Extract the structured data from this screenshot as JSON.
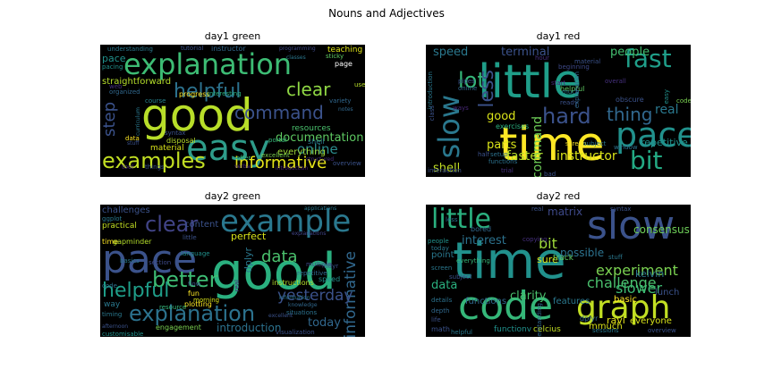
{
  "figure": {
    "title": "Nouns and Adjectives"
  },
  "panels": [
    {
      "title": "day1 green",
      "words": [
        {
          "t": "good",
          "c": "#b8de29"
        },
        {
          "t": "explanation",
          "c": "#3dbc74"
        },
        {
          "t": "easy",
          "c": "#2e9c8a"
        },
        {
          "t": "examples",
          "c": "#c2df23"
        },
        {
          "t": "helpful",
          "c": "#2c728e"
        },
        {
          "t": "command",
          "c": "#3b528b"
        },
        {
          "t": "clear",
          "c": "#8fd744"
        },
        {
          "t": "informative",
          "c": "#e5e419"
        },
        {
          "t": "step",
          "c": "#3b528b"
        },
        {
          "t": "documentation",
          "c": "#5ec962"
        },
        {
          "t": "online",
          "c": "#2c8c8d"
        },
        {
          "t": "straightforward",
          "c": "#b5de2b"
        },
        {
          "t": "resources",
          "c": "#4ac16d"
        },
        {
          "t": "everything",
          "c": "#9fda3a"
        },
        {
          "t": "material",
          "c": "#d8e219"
        },
        {
          "t": "pace",
          "c": "#21918c"
        },
        {
          "t": "teaching",
          "c": "#dde318"
        },
        {
          "t": "page",
          "c": "#ffffff"
        },
        {
          "t": "instructor",
          "c": "#31688e"
        },
        {
          "t": "tutorial",
          "c": "#3b528b"
        },
        {
          "t": "understanding",
          "c": "#2a788e"
        },
        {
          "t": "progress",
          "c": "#fde725"
        },
        {
          "t": "interesting",
          "c": "#2ab07f"
        },
        {
          "t": "excellent",
          "c": "#7ad151"
        },
        {
          "t": "shell",
          "c": "#2a788e"
        },
        {
          "t": "portal",
          "c": "#35b779"
        },
        {
          "t": "disposal",
          "c": "#b8de29"
        },
        {
          "t": "syntax",
          "c": "#3b528b"
        },
        {
          "t": "web",
          "c": "#46307e"
        },
        {
          "t": "organized",
          "c": "#31688e"
        },
        {
          "t": "course",
          "c": "#26828e"
        },
        {
          "t": "pacing",
          "c": "#21918c"
        },
        {
          "t": "data",
          "c": "#fde725"
        },
        {
          "t": "stuff",
          "c": "#3b528b"
        },
        {
          "t": "tool",
          "c": "#472c7a"
        },
        {
          "t": "things",
          "c": "#3b528b"
        },
        {
          "t": "use",
          "c": "#b8de29"
        },
        {
          "t": "sticky",
          "c": "#5ec962"
        },
        {
          "t": "variety",
          "c": "#31688e"
        },
        {
          "t": "overview",
          "c": "#3b528b"
        },
        {
          "t": "introduction",
          "c": "#482475"
        },
        {
          "t": "offer",
          "c": "#35b779"
        },
        {
          "t": "verbal",
          "c": "#482878"
        },
        {
          "t": "structured",
          "c": "#46307e"
        },
        {
          "t": "programming",
          "c": "#3e4989"
        },
        {
          "t": "classes",
          "c": "#2a788e"
        },
        {
          "t": "notes",
          "c": "#31688e"
        },
        {
          "t": "curriculum",
          "c": "#2a788e"
        }
      ]
    },
    {
      "title": "day1 red",
      "words": [
        {
          "t": "little",
          "c": "#1f9e89"
        },
        {
          "t": "time",
          "c": "#fde725"
        },
        {
          "t": "pace",
          "c": "#21918c"
        },
        {
          "t": "fast",
          "c": "#1f9e89"
        },
        {
          "t": "bit",
          "c": "#23a983"
        },
        {
          "t": "hard",
          "c": "#3b528b"
        },
        {
          "t": "slow",
          "c": "#2a788e"
        },
        {
          "t": "lot",
          "c": "#35b779"
        },
        {
          "t": "thing",
          "c": "#31688e"
        },
        {
          "t": "less",
          "c": "#3b528b"
        },
        {
          "t": "people",
          "c": "#44bf70"
        },
        {
          "t": "terminal",
          "c": "#3b528b"
        },
        {
          "t": "speed",
          "c": "#2a788e"
        },
        {
          "t": "parts",
          "c": "#d8e219"
        },
        {
          "t": "good",
          "c": "#d8e219"
        },
        {
          "t": "command",
          "c": "#6ece58"
        },
        {
          "t": "faster",
          "c": "#b5de2b"
        },
        {
          "t": "instructor",
          "c": "#d8e219"
        },
        {
          "t": "shell",
          "c": "#c2df23"
        },
        {
          "t": "real",
          "c": "#2a788e"
        },
        {
          "t": "repetitive",
          "c": "#21918c"
        },
        {
          "t": "exercises",
          "c": "#2ab07f"
        },
        {
          "t": "helpful",
          "c": "#5ec962"
        },
        {
          "t": "screen",
          "c": "#fde725"
        },
        {
          "t": "window",
          "c": "#2c728e"
        },
        {
          "t": "obscure",
          "c": "#3b528b"
        },
        {
          "t": "overall",
          "c": "#46307e"
        },
        {
          "t": "beginning",
          "c": "#3e4989"
        },
        {
          "t": "introduction",
          "c": "#2a788e"
        },
        {
          "t": "online",
          "c": "#31688e"
        },
        {
          "t": "pipes",
          "c": "#3b528b"
        },
        {
          "t": "functions",
          "c": "#2c728e"
        },
        {
          "t": "interaction",
          "c": "#3b528b"
        },
        {
          "t": "trial",
          "c": "#46307e"
        },
        {
          "t": "bad",
          "c": "#3b528b"
        },
        {
          "t": "much",
          "c": "#2a788e"
        },
        {
          "t": "ready",
          "c": "#3b528b"
        },
        {
          "t": "start",
          "c": "#472c7a"
        },
        {
          "t": "half",
          "c": "#3b528b"
        },
        {
          "t": "setup",
          "c": "#2c728e"
        },
        {
          "t": "code",
          "c": "#7ad151"
        },
        {
          "t": "material",
          "c": "#3b528b"
        },
        {
          "t": "hour",
          "c": "#46307e"
        },
        {
          "t": "explanation",
          "c": "#31688e"
        },
        {
          "t": "easy",
          "c": "#21918c"
        },
        {
          "t": "class",
          "c": "#3b528b"
        },
        {
          "t": "ways",
          "c": "#482878"
        },
        {
          "t": "subject",
          "c": "#2a788e"
        }
      ]
    },
    {
      "title": "day2 green",
      "words": [
        {
          "t": "good",
          "c": "#2ab07f"
        },
        {
          "t": "pace",
          "c": "#3b528b"
        },
        {
          "t": "example",
          "c": "#2a788e"
        },
        {
          "t": "explanation",
          "c": "#2c728e"
        },
        {
          "t": "better",
          "c": "#3dbc74"
        },
        {
          "t": "clear",
          "c": "#414487"
        },
        {
          "t": "helpful",
          "c": "#1f9e89"
        },
        {
          "t": "data",
          "c": "#4ac16d"
        },
        {
          "t": "informative",
          "c": "#31688e"
        },
        {
          "t": "yesterday",
          "c": "#3b528b"
        },
        {
          "t": "today",
          "c": "#31688e"
        },
        {
          "t": "introduction",
          "c": "#2c728e"
        },
        {
          "t": "perfect",
          "c": "#d8e219"
        },
        {
          "t": "dplyr",
          "c": "#2a788e"
        },
        {
          "t": "content",
          "c": "#3b528b"
        },
        {
          "t": "challenges",
          "c": "#3b528b"
        },
        {
          "t": "practical",
          "c": "#c2df23"
        },
        {
          "t": "way",
          "c": "#2a788e"
        },
        {
          "t": "situations",
          "c": "#2c728e"
        },
        {
          "t": "instructions",
          "c": "#b5de2b"
        },
        {
          "t": "multiple",
          "c": "#3e4989"
        },
        {
          "t": "speed",
          "c": "#21918c"
        },
        {
          "t": "plotting",
          "c": "#fde725"
        },
        {
          "t": "engagement",
          "c": "#7ad151"
        },
        {
          "t": "resource",
          "c": "#35b779"
        },
        {
          "t": "visualization",
          "c": "#3b528b"
        },
        {
          "t": "timing",
          "c": "#2a788e"
        },
        {
          "t": "customisable",
          "c": "#21918c"
        },
        {
          "t": "time",
          "c": "#fde725"
        },
        {
          "t": "gapminder",
          "c": "#b5de2b"
        },
        {
          "t": "basics",
          "c": "#2a788e"
        },
        {
          "t": "repetitive",
          "c": "#31688e"
        },
        {
          "t": "tidyr",
          "c": "#3b528b"
        },
        {
          "t": "ggplot",
          "c": "#2a788e"
        },
        {
          "t": "code",
          "c": "#2c728e"
        },
        {
          "t": "fun",
          "c": "#fde725"
        },
        {
          "t": "morning",
          "c": "#d8e219"
        },
        {
          "t": "flow",
          "c": "#3b528b"
        },
        {
          "t": "little",
          "c": "#3b528b"
        },
        {
          "t": "section",
          "c": "#3e4989"
        },
        {
          "t": "language",
          "c": "#21918c"
        },
        {
          "t": "afternoon",
          "c": "#3b528b"
        },
        {
          "t": "information",
          "c": "#2a788e"
        },
        {
          "t": "knowledge",
          "c": "#31688e"
        },
        {
          "t": "real",
          "c": "#482878"
        },
        {
          "t": "explanations",
          "c": "#414487"
        },
        {
          "t": "excellent",
          "c": "#3b528b"
        },
        {
          "t": "applications",
          "c": "#2a788e"
        }
      ]
    },
    {
      "title": "day2 red",
      "words": [
        {
          "t": "time",
          "c": "#21918c"
        },
        {
          "t": "slow",
          "c": "#3b528b"
        },
        {
          "t": "code",
          "c": "#35b779"
        },
        {
          "t": "graph",
          "c": "#c2df23"
        },
        {
          "t": "little",
          "c": "#2ab07f"
        },
        {
          "t": "experiment",
          "c": "#7ad151"
        },
        {
          "t": "challenge",
          "c": "#4ac16d"
        },
        {
          "t": "slower",
          "c": "#3dbc74"
        },
        {
          "t": "bit",
          "c": "#9fda3a"
        },
        {
          "t": "interest",
          "c": "#2c728e"
        },
        {
          "t": "data",
          "c": "#2ab07f"
        },
        {
          "t": "clarity",
          "c": "#4ac16d"
        },
        {
          "t": "point",
          "c": "#2a788e"
        },
        {
          "t": "matrix",
          "c": "#3e4989"
        },
        {
          "t": "consensus",
          "c": "#6ece58"
        },
        {
          "t": "possible",
          "c": "#2c728e"
        },
        {
          "t": "kelvin",
          "c": "#2a788e"
        },
        {
          "t": "basic",
          "c": "#fde725"
        },
        {
          "t": "lunch",
          "c": "#3b528b"
        },
        {
          "t": "functions",
          "c": "#31688e"
        },
        {
          "t": "features",
          "c": "#2a788e"
        },
        {
          "t": "sure",
          "c": "#d8e219"
        },
        {
          "t": "ravi",
          "c": "#e5e419"
        },
        {
          "t": "everyone",
          "c": "#d8e219"
        },
        {
          "t": "overview",
          "c": "#3b528b"
        },
        {
          "t": "mmuch",
          "c": "#d8e219"
        },
        {
          "t": "dplyr",
          "c": "#31688e"
        },
        {
          "t": "celcius",
          "c": "#c2df23"
        },
        {
          "t": "functionv",
          "c": "#21918c"
        },
        {
          "t": "math",
          "c": "#3b528b"
        },
        {
          "t": "helpful",
          "c": "#2a788e"
        },
        {
          "t": "track",
          "c": "#5ec962"
        },
        {
          "t": "less",
          "c": "#2c728e"
        },
        {
          "t": "bored",
          "c": "#31688e"
        },
        {
          "t": "copying",
          "c": "#46307e"
        },
        {
          "t": "stuff",
          "c": "#2a788e"
        },
        {
          "t": "syntax",
          "c": "#3b528b"
        },
        {
          "t": "real",
          "c": "#3b528b"
        },
        {
          "t": "people",
          "c": "#21918c"
        },
        {
          "t": "screen",
          "c": "#2a788e"
        },
        {
          "t": "today",
          "c": "#2a788e"
        },
        {
          "t": "subject",
          "c": "#3b528b"
        },
        {
          "t": "details",
          "c": "#2c728e"
        },
        {
          "t": "depth",
          "c": "#31688e"
        },
        {
          "t": "life",
          "c": "#3b528b"
        },
        {
          "t": "sessions",
          "c": "#2a788e"
        },
        {
          "t": "everything",
          "c": "#35b779"
        },
        {
          "t": "understanding",
          "c": "#31688e"
        }
      ]
    }
  ]
}
